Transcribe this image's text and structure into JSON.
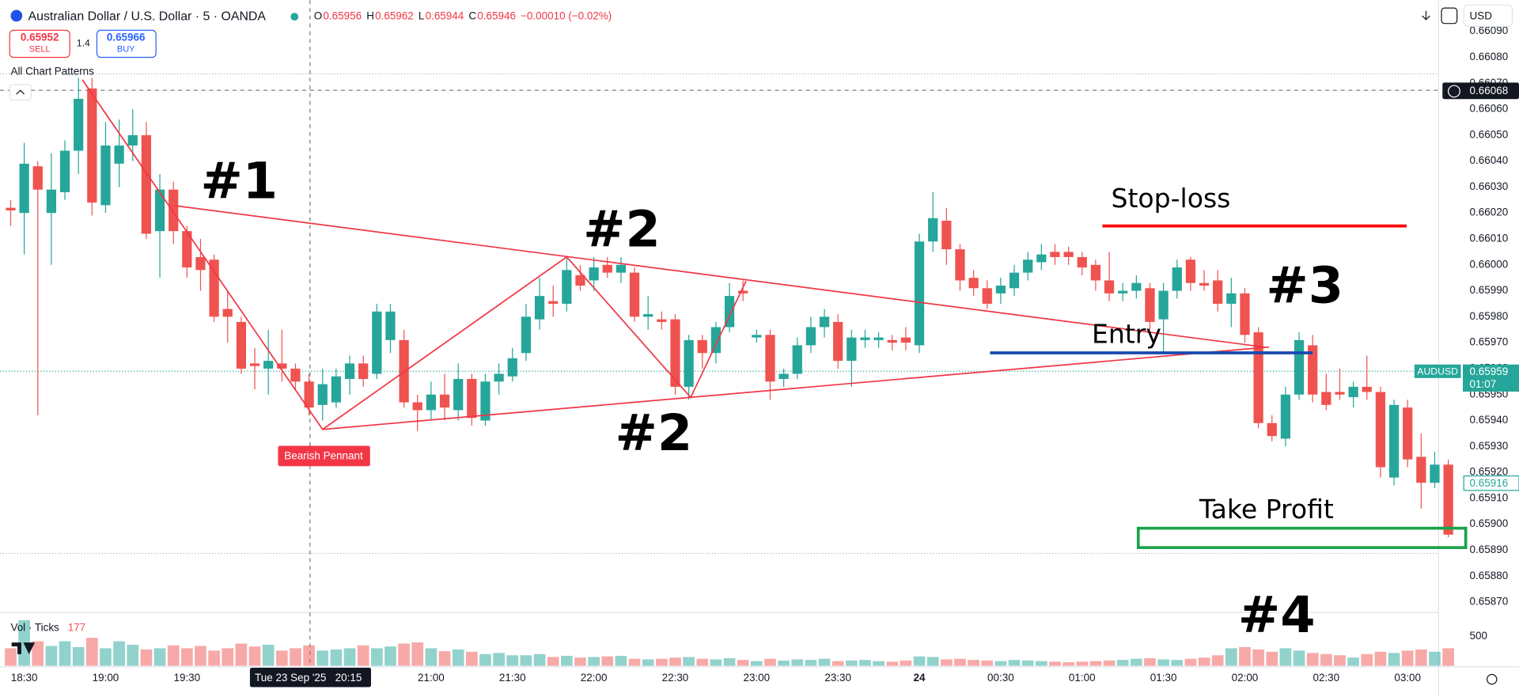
{
  "header": {
    "symbol": "Australian Dollar / U.S. Dollar · 5 · OANDA",
    "ohlc": [
      {
        "key": "O",
        "value": "0.65956"
      },
      {
        "key": "H",
        "value": "0.65962"
      },
      {
        "key": "L",
        "value": "0.65944"
      },
      {
        "key": "C",
        "value": "0.65946"
      }
    ],
    "change": "−0.00010 (−0.02%)",
    "sell_price": "0.65952",
    "sell_label": "SELL",
    "spread": "1.4",
    "buy_price": "0.65966",
    "buy_label": "BUY",
    "indicator": "All Chart Patterns",
    "currency": "USD"
  },
  "labels": {
    "pattern": "Bearish Pennant",
    "crosshair_price": "0.66068",
    "crosshair_date": "Tue 23 Sep '25",
    "crosshair_time": "20:15",
    "ticker": "AUDUSD",
    "last_price": "0.65959",
    "countdown": "01:07",
    "other_price": "0.65916",
    "volume_title": "Vol · Ticks",
    "volume_value": "177"
  },
  "annotations": {
    "a1": "#1",
    "a2": "#2",
    "a2b": "#2",
    "a3": "#3",
    "a4": "#4",
    "stop_loss": "Stop-loss",
    "entry": "Entry",
    "take_profit": "Take Profit"
  },
  "chart_data": {
    "type": "candlestick",
    "up_color": "#26a69a",
    "down_color": "#ef5350",
    "categories": [
      null,
      "18:30",
      null,
      null,
      null,
      null,
      null,
      "19:00",
      null,
      null,
      null,
      null,
      null,
      "19:30",
      null,
      null,
      null,
      null,
      null,
      null,
      null,
      null,
      null,
      null,
      null,
      null,
      null,
      null,
      null,
      null,
      null,
      "21:00",
      null,
      null,
      null,
      null,
      null,
      "21:30",
      null,
      null,
      null,
      null,
      null,
      "22:00",
      null,
      null,
      null,
      null,
      null,
      "22:30",
      null,
      null,
      null,
      null,
      null,
      "23:00",
      null,
      null,
      null,
      null,
      null,
      "23:30",
      null,
      null,
      null,
      null,
      null,
      "24",
      null,
      null,
      null,
      null,
      null,
      "00:30",
      null,
      null,
      null,
      null,
      null,
      "01:00",
      null,
      null,
      null,
      null,
      null,
      "01:30",
      null,
      null,
      null,
      null,
      null,
      "02:00",
      null,
      null,
      null,
      null,
      null,
      "02:30",
      null,
      null,
      null,
      null,
      null,
      "03:00",
      null,
      null,
      null
    ],
    "open": [
      0.66022,
      0.6602,
      0.66038,
      0.6602,
      0.66028,
      0.66044,
      0.66068,
      0.66023,
      0.66039,
      0.66046,
      0.6605,
      0.66013,
      0.66029,
      0.66013,
      0.66003,
      0.66002,
      0.65983,
      0.65978,
      0.65962,
      0.6596,
      0.65962,
      0.6596,
      0.65955,
      0.65946,
      0.65947,
      0.65956,
      0.65962,
      0.65958,
      0.65971,
      0.65971,
      0.65947,
      0.65944,
      0.6595,
      0.65944,
      0.65956,
      0.6594,
      0.65955,
      0.65957,
      0.65966,
      0.65979,
      0.65986,
      0.65985,
      0.65996,
      0.65994,
      0.66,
      0.65997,
      0.65997,
      0.6598,
      0.65979,
      0.65979,
      0.65953,
      0.65971,
      0.65966,
      0.65976,
      0.6599,
      0.65972,
      0.65973,
      0.65956,
      0.65958,
      0.65969,
      0.65976,
      0.65978,
      0.65963,
      0.65971,
      0.65971,
      0.65971,
      0.65972,
      0.65969,
      0.66009,
      0.66017,
      0.66006,
      0.65995,
      0.65991,
      0.65989,
      0.65991,
      0.65997,
      0.66001,
      0.66005,
      0.66005,
      0.66003,
      0.66,
      0.65994,
      0.65989,
      0.6599,
      0.65991,
      0.65979,
      0.6599,
      0.66002,
      0.65993,
      0.65994,
      0.65985,
      0.65989,
      0.65974,
      0.65939,
      0.65933,
      0.6595,
      0.65969,
      0.65951,
      0.65951,
      0.65949,
      0.65953,
      0.65951,
      0.65918,
      0.65945,
      0.65926,
      0.65916,
      0.65923
    ],
    "high": [
      0.66025,
      0.66047,
      0.6604,
      0.66043,
      0.66048,
      0.66072,
      0.66072,
      0.66055,
      0.66056,
      0.6606,
      0.66055,
      0.66035,
      0.66032,
      0.66015,
      0.6601,
      0.66004,
      0.6599,
      0.6598,
      0.65968,
      0.65975,
      0.65975,
      0.65962,
      0.65958,
      0.6596,
      0.6596,
      0.65965,
      0.65965,
      0.65985,
      0.65985,
      0.65975,
      0.6595,
      0.65955,
      0.65958,
      0.65962,
      0.65958,
      0.65958,
      0.65962,
      0.65968,
      0.65985,
      0.65995,
      0.65992,
      0.66003,
      0.66,
      0.66003,
      0.66003,
      0.66003,
      0.65999,
      0.65988,
      0.65982,
      0.65981,
      0.65973,
      0.65973,
      0.65978,
      0.65993,
      0.65994,
      0.65975,
      0.65975,
      0.6596,
      0.65972,
      0.6598,
      0.65983,
      0.65981,
      0.65975,
      0.65975,
      0.65974,
      0.65973,
      0.65976,
      0.66012,
      0.66028,
      0.66022,
      0.66008,
      0.65998,
      0.65994,
      0.65995,
      0.66,
      0.66005,
      0.66008,
      0.66008,
      0.66007,
      0.66005,
      0.66002,
      0.66005,
      0.65993,
      0.65996,
      0.65993,
      0.65993,
      0.66002,
      0.66003,
      0.65998,
      0.65998,
      0.65995,
      0.65991,
      0.65976,
      0.65942,
      0.65953,
      0.65974,
      0.65973,
      0.65958,
      0.6596,
      0.65955,
      0.65965,
      0.65953,
      0.65948,
      0.65948,
      0.65935,
      0.65928,
      0.65925
    ],
    "low": [
      0.66015,
      0.66004,
      0.65942,
      0.66,
      0.66025,
      0.66035,
      0.66019,
      0.6602,
      0.6603,
      0.6604,
      0.6601,
      0.65995,
      0.66008,
      0.65995,
      0.6599,
      0.65978,
      0.6597,
      0.65958,
      0.65952,
      0.6595,
      0.65955,
      0.65952,
      0.65942,
      0.6594,
      0.65945,
      0.6595,
      0.65953,
      0.65956,
      0.65966,
      0.65945,
      0.65936,
      0.6594,
      0.6594,
      0.6594,
      0.65938,
      0.65938,
      0.6595,
      0.65955,
      0.65963,
      0.65975,
      0.6598,
      0.65982,
      0.6599,
      0.6599,
      0.65995,
      0.65993,
      0.65978,
      0.65975,
      0.65975,
      0.6595,
      0.65948,
      0.6596,
      0.65962,
      0.65974,
      0.65986,
      0.6597,
      0.65948,
      0.65953,
      0.65956,
      0.65966,
      0.65972,
      0.6596,
      0.65953,
      0.65968,
      0.65968,
      0.65967,
      0.65967,
      0.65966,
      0.66005,
      0.66,
      0.6599,
      0.65988,
      0.65983,
      0.65985,
      0.65988,
      0.65994,
      0.65998,
      0.66,
      0.66,
      0.65996,
      0.6599,
      0.65986,
      0.65986,
      0.65987,
      0.65975,
      0.65966,
      0.65987,
      0.6599,
      0.6599,
      0.65982,
      0.65976,
      0.6597,
      0.65937,
      0.65932,
      0.6593,
      0.65948,
      0.65947,
      0.65944,
      0.65948,
      0.65945,
      0.65948,
      0.65918,
      0.65915,
      0.65922,
      0.65906,
      0.65914,
      0.65895
    ],
    "close": [
      0.66021,
      0.66039,
      0.66029,
      0.66029,
      0.66044,
      0.66064,
      0.66024,
      0.66046,
      0.66046,
      0.6605,
      0.66012,
      0.66029,
      0.66013,
      0.65999,
      0.65998,
      0.6598,
      0.6598,
      0.6596,
      0.65961,
      0.65963,
      0.6596,
      0.65955,
      0.65945,
      0.65954,
      0.65957,
      0.65962,
      0.65956,
      0.65982,
      0.65982,
      0.65947,
      0.65944,
      0.6595,
      0.65945,
      0.65956,
      0.65941,
      0.65955,
      0.65958,
      0.65964,
      0.6598,
      0.65988,
      0.65985,
      0.65998,
      0.65992,
      0.65999,
      0.65997,
      0.66,
      0.6598,
      0.65981,
      0.65978,
      0.65953,
      0.65971,
      0.65966,
      0.65976,
      0.65988,
      0.65989,
      0.65973,
      0.65955,
      0.65958,
      0.65969,
      0.65976,
      0.6598,
      0.65963,
      0.65972,
      0.65972,
      0.65972,
      0.6597,
      0.6597,
      0.66009,
      0.66018,
      0.66006,
      0.65994,
      0.65991,
      0.65985,
      0.65992,
      0.65997,
      0.66002,
      0.66004,
      0.66003,
      0.66003,
      0.65999,
      0.65994,
      0.65989,
      0.6599,
      0.65993,
      0.65978,
      0.6599,
      0.65999,
      0.65993,
      0.65992,
      0.65985,
      0.65989,
      0.65973,
      0.65939,
      0.65934,
      0.6595,
      0.65971,
      0.6595,
      0.65946,
      0.6595,
      0.65953,
      0.65951,
      0.65922,
      0.65946,
      0.65925,
      0.65916,
      0.65923,
      0.65896
    ],
    "volume": [
      300,
      780,
      420,
      340,
      420,
      320,
      480,
      300,
      420,
      360,
      280,
      300,
      350,
      300,
      340,
      260,
      300,
      380,
      330,
      360,
      260,
      300,
      350,
      260,
      280,
      300,
      350,
      300,
      330,
      380,
      400,
      300,
      250,
      280,
      240,
      200,
      220,
      180,
      180,
      200,
      150,
      170,
      140,
      150,
      160,
      170,
      120,
      110,
      120,
      140,
      150,
      120,
      110,
      130,
      100,
      80,
      120,
      90,
      110,
      100,
      120,
      80,
      90,
      100,
      80,
      70,
      90,
      160,
      150,
      110,
      120,
      100,
      90,
      80,
      100,
      90,
      80,
      70,
      60,
      70,
      80,
      90,
      100,
      120,
      130,
      110,
      100,
      120,
      140,
      180,
      300,
      320,
      280,
      240,
      300,
      260,
      220,
      200,
      180,
      140,
      200,
      240,
      220,
      260,
      280,
      240,
      300
    ],
    "ylim": [
      0.65866,
      0.66102
    ],
    "yticks": [
      {
        "value": 0.6587,
        "label": "0.65870"
      },
      {
        "value": 0.6588,
        "label": "0.65880"
      },
      {
        "value": 0.6589,
        "label": "0.65890"
      },
      {
        "value": 0.659,
        "label": "0.65900"
      },
      {
        "value": 0.6591,
        "label": "0.65910"
      },
      {
        "value": 0.6592,
        "label": "0.65920"
      },
      {
        "value": 0.6593,
        "label": "0.65930"
      },
      {
        "value": 0.6594,
        "label": "0.65940"
      },
      {
        "value": 0.6595,
        "label": "0.65950"
      },
      {
        "value": 0.6596,
        "label": "0.65960"
      },
      {
        "value": 0.6597,
        "label": "0.65970"
      },
      {
        "value": 0.6598,
        "label": "0.65980"
      },
      {
        "value": 0.6599,
        "label": "0.65990"
      },
      {
        "value": 0.66,
        "label": "0.66000"
      },
      {
        "value": 0.6601,
        "label": "0.66010"
      },
      {
        "value": 0.6602,
        "label": "0.66020"
      },
      {
        "value": 0.6603,
        "label": "0.66030"
      },
      {
        "value": 0.6604,
        "label": "0.66040"
      },
      {
        "value": 0.6605,
        "label": "0.66050"
      },
      {
        "value": 0.6606,
        "label": "0.66060"
      },
      {
        "value": 0.6607,
        "label": "0.66070"
      },
      {
        "value": 0.6608,
        "label": "0.66080"
      },
      {
        "value": 0.6609,
        "label": "0.66090"
      }
    ],
    "volume_ylim": [
      0,
      830
    ],
    "volume_yticks": [
      500
    ],
    "grid": false
  }
}
